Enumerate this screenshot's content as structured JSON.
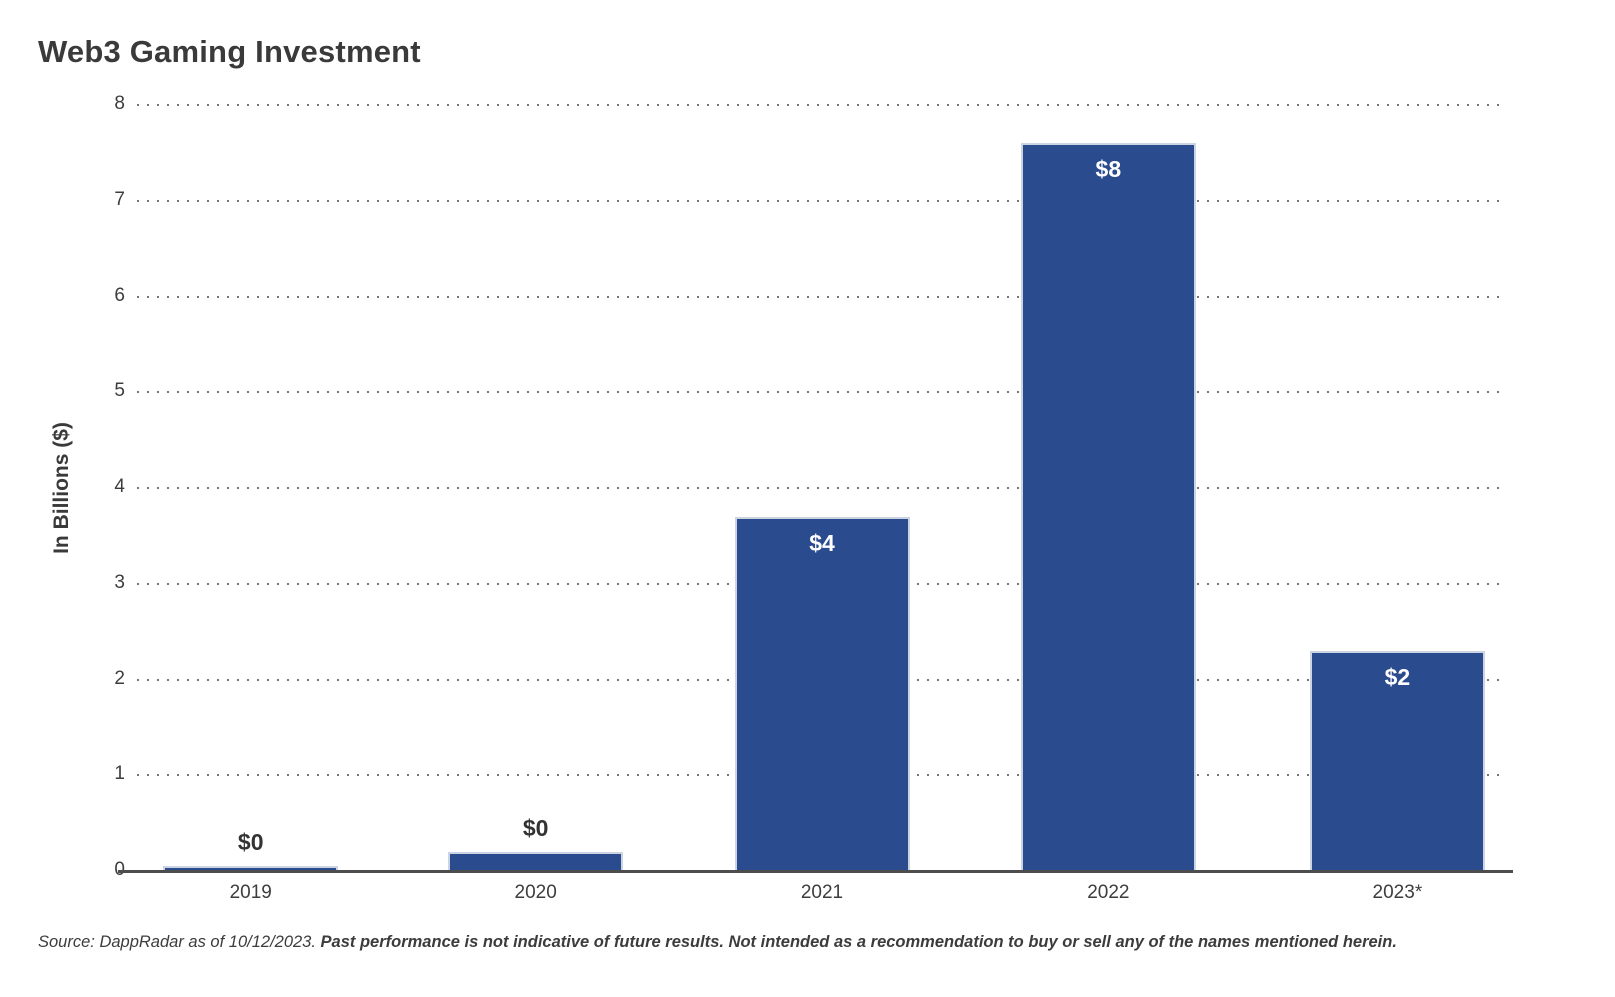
{
  "title": "Web3 Gaming Investment",
  "chart_data": {
    "type": "bar",
    "title": "Web3 Gaming Investment",
    "categories": [
      "2019",
      "2020",
      "2021",
      "2022",
      "2023*"
    ],
    "values": [
      0.05,
      0.2,
      3.7,
      7.6,
      2.3
    ],
    "bar_labels": [
      "$0",
      "$0",
      "$4",
      "$8",
      "$2"
    ],
    "bar_label_placement": [
      "outside",
      "outside",
      "inside",
      "inside",
      "inside"
    ],
    "xlabel": "",
    "ylabel": "In Billions ($)",
    "ylim": [
      0,
      8
    ],
    "yticks": [
      0,
      1,
      2,
      3,
      4,
      5,
      6,
      7,
      8
    ],
    "grid": "horizontal-dotted",
    "legend": "none",
    "bar_color": "#2b4b8f",
    "bar_edge_color": "#ccd4e4",
    "inside_label_color": "#ffffff",
    "outside_label_color": "#333333"
  },
  "footer": {
    "source_text": "Source: DappRadar as of 10/12/2023. ",
    "disclaimer_text": "Past performance is not indicative of future results. Not intended as a recommendation to buy or sell any of the names mentioned herein."
  }
}
